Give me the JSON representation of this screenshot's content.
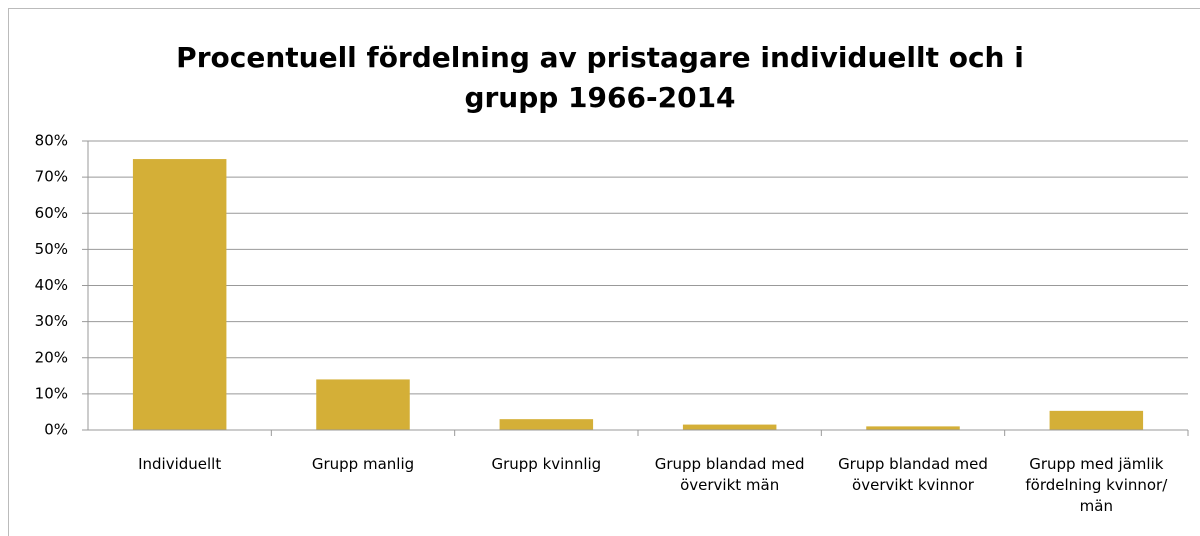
{
  "chart_data": {
    "type": "bar",
    "title": "Procentuell fördelning av pristagare individuellt och i grupp 1966-2014",
    "categories": [
      "Individuellt",
      "Grupp manlig",
      "Grupp kvinnlig",
      "Grupp blandad med övervikt män",
      "Grupp blandad med övervikt kvinnor",
      "Grupp med jämlik fördelning kvinnor/ män"
    ],
    "values": [
      75,
      14,
      3,
      1.5,
      1,
      5.3
    ],
    "color": "#d4af37",
    "ylim": [
      0,
      80
    ],
    "yticks": [
      {
        "value": 0,
        "label": "0%"
      },
      {
        "value": 10,
        "label": "10%"
      },
      {
        "value": 20,
        "label": "20%"
      },
      {
        "value": 30,
        "label": "30%"
      },
      {
        "value": 40,
        "label": "40%"
      },
      {
        "value": 50,
        "label": "50%"
      },
      {
        "value": 60,
        "label": "60%"
      },
      {
        "value": 70,
        "label": "70%"
      },
      {
        "value": 80,
        "label": "80%"
      }
    ],
    "grid": true
  }
}
